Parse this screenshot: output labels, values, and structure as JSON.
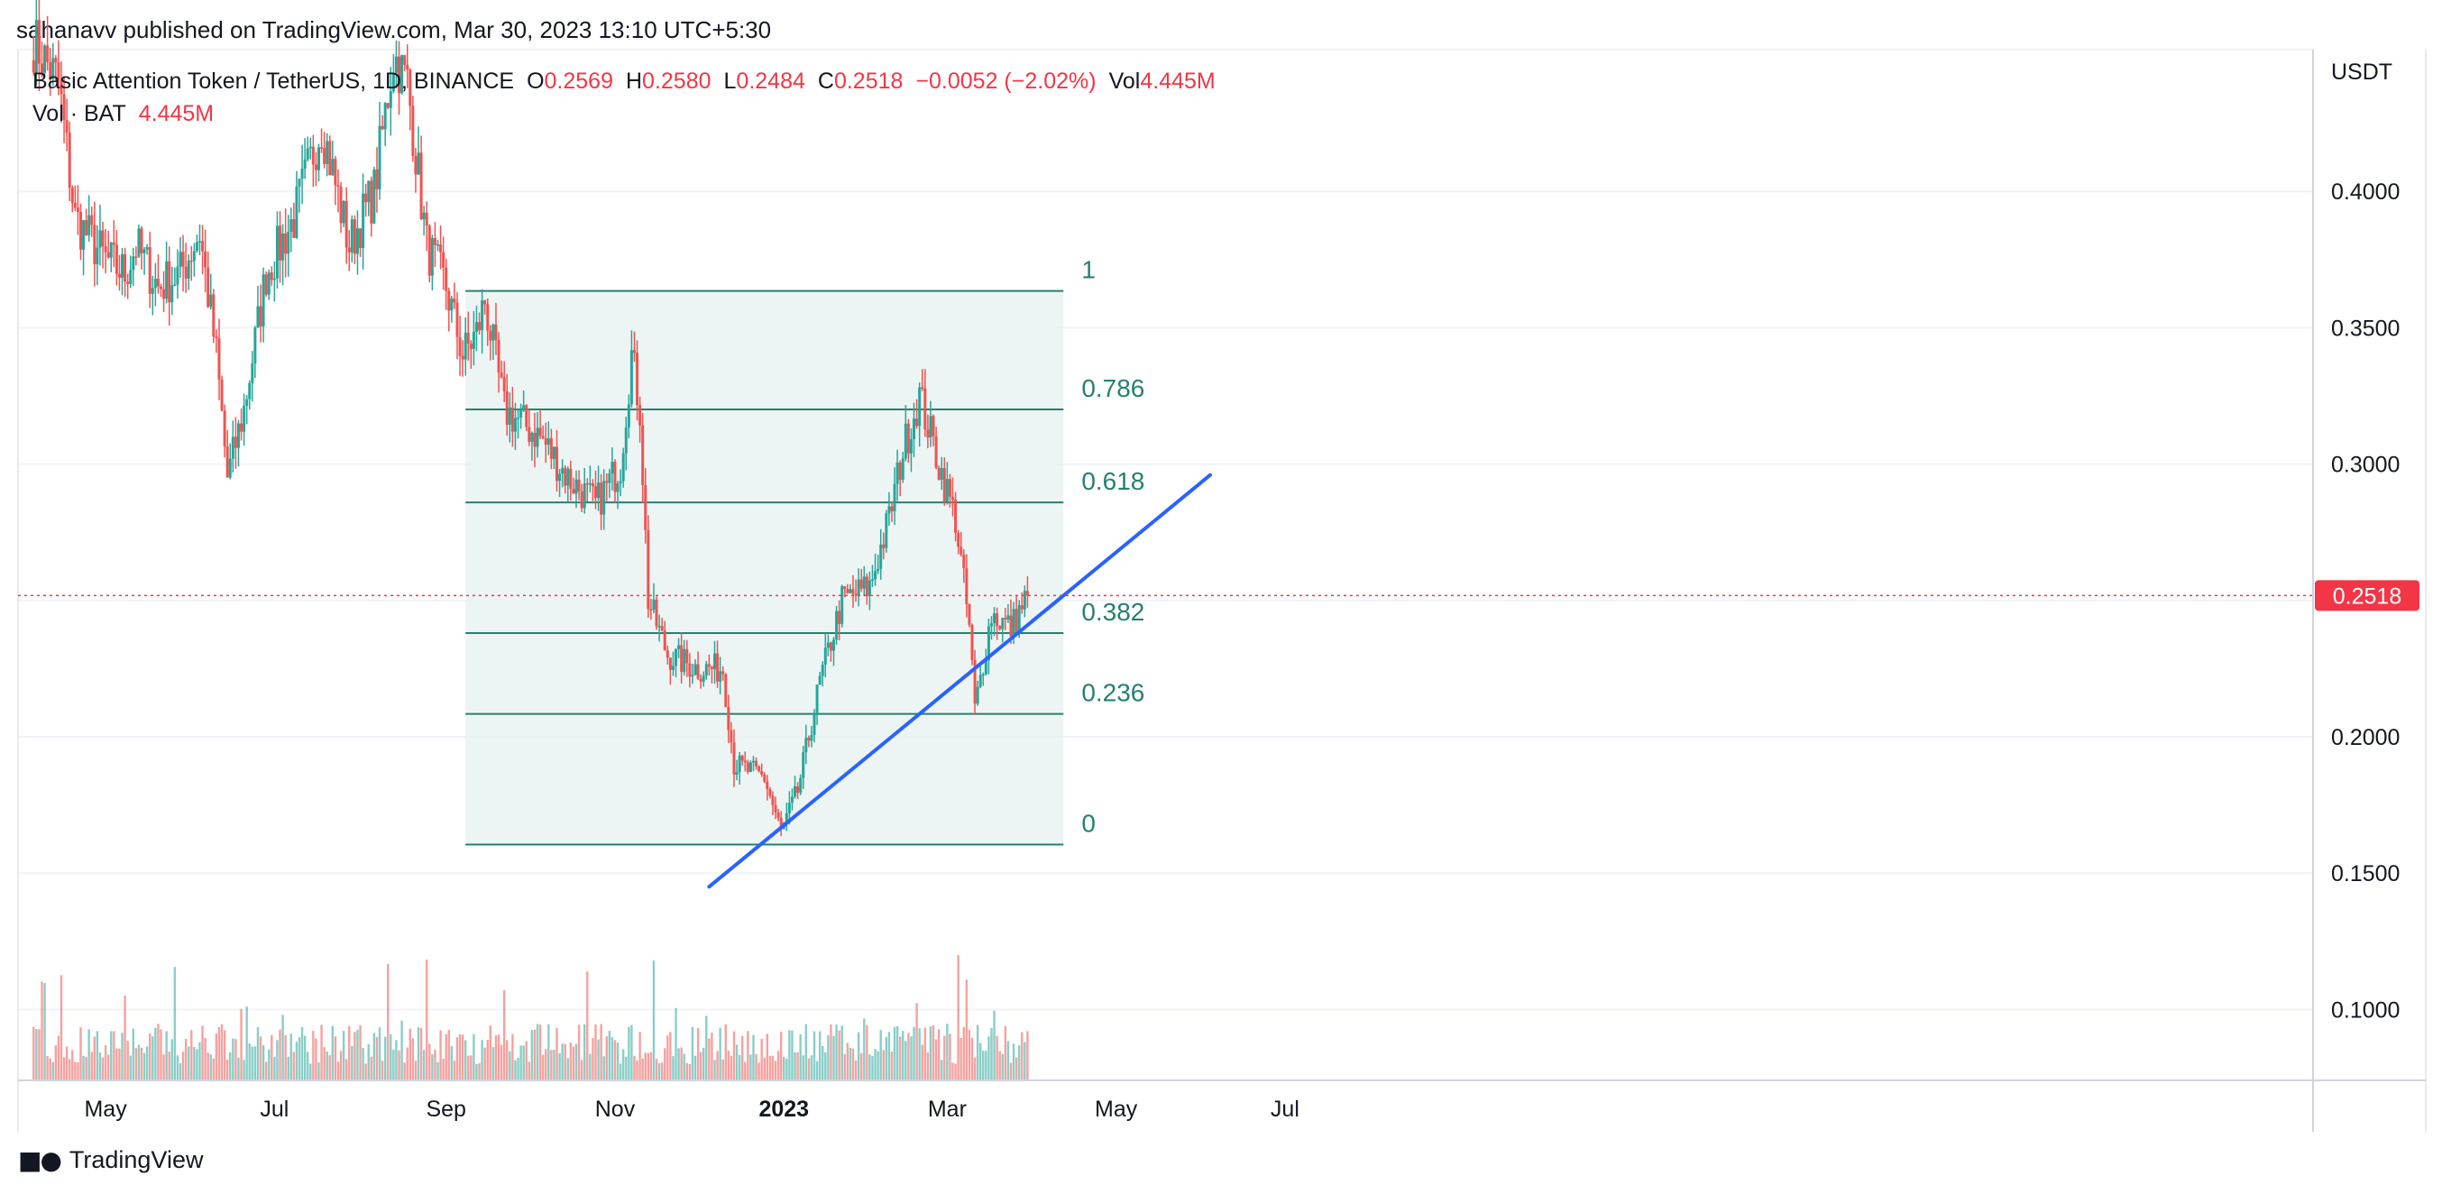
{
  "header": {
    "published": "sahanavv published on TradingView.com, Mar 30, 2023 13:10 UTC+5:30"
  },
  "legend": {
    "symbol": "Basic Attention Token / TetherUS, 1D, BINANCE",
    "o_label": "O",
    "o_value": "0.2569",
    "h_label": "H",
    "h_value": "0.2580",
    "l_label": "L",
    "l_value": "0.2484",
    "c_label": "C",
    "c_value": "0.2518",
    "change": "−0.0052 (−2.02%)",
    "vol_label": "Vol",
    "vol_value": "4.445M",
    "vol_row_label": "Vol · BAT",
    "vol_row_value": "4.445M"
  },
  "footer": {
    "brand": "TradingView",
    "logo_icon": "tradingview-logo-icon"
  },
  "colors": {
    "up": "#26a69a",
    "down": "#ef5350",
    "fib": "#26806f",
    "fib_fill": "#e9f3f1",
    "trend": "#2962ff",
    "price_tag": "#f23645"
  },
  "chart_data": {
    "type": "candlestick",
    "currency": "USDT",
    "last_price": "0.2518",
    "ylim": [
      0.074,
      0.452
    ],
    "y_ticks": [
      "0.4000",
      "0.3500",
      "0.3000",
      "0.2500",
      "0.2000",
      "0.1500",
      "0.1000"
    ],
    "x_ticks": [
      {
        "label": "May",
        "date": "2022-05-01",
        "bold": false
      },
      {
        "label": "Jul",
        "date": "2022-07-01",
        "bold": false
      },
      {
        "label": "Sep",
        "date": "2022-09-01",
        "bold": false
      },
      {
        "label": "Nov",
        "date": "2022-11-01",
        "bold": false
      },
      {
        "label": "2023",
        "date": "2023-01-01",
        "bold": true
      },
      {
        "label": "Mar",
        "date": "2023-03-01",
        "bold": false
      },
      {
        "label": "May",
        "date": "2023-05-01",
        "bold": false
      },
      {
        "label": "Jul",
        "date": "2023-07-01",
        "bold": false
      }
    ],
    "price_path": [
      [
        "2022-04-05",
        0.455
      ],
      [
        "2022-04-14",
        0.44
      ],
      [
        "2022-04-20",
        0.39
      ],
      [
        "2022-05-01",
        0.375
      ],
      [
        "2022-05-08",
        0.37
      ],
      [
        "2022-05-12",
        0.38
      ],
      [
        "2022-05-20",
        0.365
      ],
      [
        "2022-05-28",
        0.37
      ],
      [
        "2022-06-04",
        0.385
      ],
      [
        "2022-06-10",
        0.34
      ],
      [
        "2022-06-14",
        0.295
      ],
      [
        "2022-06-20",
        0.32
      ],
      [
        "2022-06-28",
        0.37
      ],
      [
        "2022-07-08",
        0.39
      ],
      [
        "2022-07-18",
        0.425
      ],
      [
        "2022-07-28",
        0.38
      ],
      [
        "2022-08-06",
        0.4
      ],
      [
        "2022-08-13",
        0.45
      ],
      [
        "2022-08-18",
        0.44
      ],
      [
        "2022-08-25",
        0.38
      ],
      [
        "2022-09-01",
        0.365
      ],
      [
        "2022-09-07",
        0.34
      ],
      [
        "2022-09-12",
        0.348
      ],
      [
        "2022-09-15",
        0.36
      ],
      [
        "2022-09-22",
        0.32
      ],
      [
        "2022-10-05",
        0.31
      ],
      [
        "2022-10-15",
        0.295
      ],
      [
        "2022-10-25",
        0.285
      ],
      [
        "2022-11-03",
        0.3
      ],
      [
        "2022-11-07",
        0.34
      ],
      [
        "2022-11-10",
        0.32
      ],
      [
        "2022-11-13",
        0.25
      ],
      [
        "2022-11-20",
        0.23
      ],
      [
        "2022-12-01",
        0.225
      ],
      [
        "2022-12-10",
        0.225
      ],
      [
        "2022-12-14",
        0.19
      ],
      [
        "2022-12-25",
        0.185
      ],
      [
        "2022-12-31",
        0.165
      ],
      [
        "2023-01-06",
        0.18
      ],
      [
        "2023-01-14",
        0.22
      ],
      [
        "2023-01-22",
        0.25
      ],
      [
        "2023-02-01",
        0.255
      ],
      [
        "2023-02-08",
        0.28
      ],
      [
        "2023-02-13",
        0.305
      ],
      [
        "2023-02-19",
        0.325
      ],
      [
        "2023-02-26",
        0.3
      ],
      [
        "2023-03-04",
        0.28
      ],
      [
        "2023-03-09",
        0.24
      ],
      [
        "2023-03-11",
        0.21
      ],
      [
        "2023-03-17",
        0.245
      ],
      [
        "2023-03-24",
        0.24
      ],
      [
        "2023-03-30",
        0.2518
      ]
    ],
    "fib": {
      "start_date": "2022-09-08",
      "end_date": "2023-04-12",
      "low": 0.1605,
      "high": 0.3635,
      "levels": [
        {
          "ratio": 0,
          "label": "0"
        },
        {
          "ratio": 0.236,
          "label": "0.236"
        },
        {
          "ratio": 0.382,
          "label": "0.382"
        },
        {
          "ratio": 0.618,
          "label": "0.618"
        },
        {
          "ratio": 0.786,
          "label": "0.786"
        },
        {
          "ratio": 1,
          "label": "1"
        }
      ]
    },
    "trendline": [
      [
        "2022-12-05",
        0.145
      ],
      [
        "2023-06-04",
        0.296
      ]
    ]
  }
}
